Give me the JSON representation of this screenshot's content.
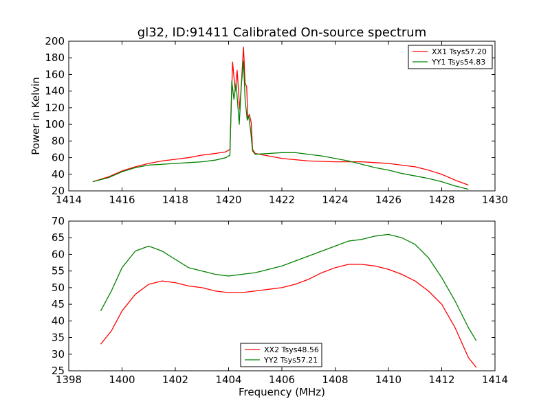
{
  "figure": {
    "title": "gl32, ID:91411 Calibrated On-source spectrum",
    "ylabel_top": "Power in Kelvin",
    "xlabel_bottom": "Frequency (MHz)"
  },
  "chart_data": [
    {
      "type": "line",
      "title": "gl32, ID:91411 Calibrated On-source spectrum",
      "xlabel": "",
      "ylabel": "Power in Kelvin",
      "xlim": [
        1414,
        1430
      ],
      "ylim": [
        20,
        200
      ],
      "xticks": [
        1414,
        1416,
        1418,
        1420,
        1422,
        1424,
        1426,
        1428,
        1430
      ],
      "yticks": [
        20,
        40,
        60,
        80,
        100,
        120,
        140,
        160,
        180,
        200
      ],
      "grid": false,
      "legend": "top-right",
      "series": [
        {
          "name": "XX1 Tsys57.20",
          "color": "#ff0000",
          "points": [
            [
              1414.9,
              31
            ],
            [
              1415.5,
              37
            ],
            [
              1416,
              44
            ],
            [
              1416.5,
              49
            ],
            [
              1417,
              53
            ],
            [
              1417.5,
              56
            ],
            [
              1418,
              58
            ],
            [
              1418.5,
              60
            ],
            [
              1419,
              63
            ],
            [
              1419.5,
              65
            ],
            [
              1419.9,
              67
            ],
            [
              1420.05,
              70
            ],
            [
              1420.15,
              175
            ],
            [
              1420.25,
              140
            ],
            [
              1420.32,
              165
            ],
            [
              1420.42,
              118
            ],
            [
              1420.5,
              160
            ],
            [
              1420.56,
              193
            ],
            [
              1420.62,
              150
            ],
            [
              1420.68,
              145
            ],
            [
              1420.72,
              108
            ],
            [
              1420.78,
              112
            ],
            [
              1420.85,
              102
            ],
            [
              1420.9,
              70
            ],
            [
              1421,
              65
            ],
            [
              1421.5,
              62
            ],
            [
              1422,
              59
            ],
            [
              1423,
              56
            ],
            [
              1424,
              55
            ],
            [
              1425,
              55
            ],
            [
              1425.5,
              54
            ],
            [
              1426,
              53
            ],
            [
              1426.5,
              51
            ],
            [
              1427,
              49
            ],
            [
              1427.5,
              45
            ],
            [
              1428,
              40
            ],
            [
              1428.5,
              33
            ],
            [
              1429,
              27
            ]
          ]
        },
        {
          "name": "YY1 Tsys54.83",
          "color": "#008000",
          "points": [
            [
              1414.9,
              31
            ],
            [
              1415.5,
              36
            ],
            [
              1416,
              43
            ],
            [
              1416.5,
              48
            ],
            [
              1417,
              51
            ],
            [
              1417.5,
              52
            ],
            [
              1418,
              53
            ],
            [
              1418.5,
              54
            ],
            [
              1419,
              55
            ],
            [
              1419.5,
              57
            ],
            [
              1419.9,
              60
            ],
            [
              1420.05,
              63
            ],
            [
              1420.12,
              152
            ],
            [
              1420.2,
              130
            ],
            [
              1420.28,
              150
            ],
            [
              1420.4,
              100
            ],
            [
              1420.48,
              148
            ],
            [
              1420.56,
              176
            ],
            [
              1420.62,
              130
            ],
            [
              1420.7,
              105
            ],
            [
              1420.75,
              110
            ],
            [
              1420.82,
              95
            ],
            [
              1420.9,
              68
            ],
            [
              1421,
              64
            ],
            [
              1421.5,
              65
            ],
            [
              1422,
              66
            ],
            [
              1422.5,
              66
            ],
            [
              1423,
              64
            ],
            [
              1423.5,
              62
            ],
            [
              1424,
              59
            ],
            [
              1424.5,
              56
            ],
            [
              1425,
              52
            ],
            [
              1425.5,
              48
            ],
            [
              1426,
              45
            ],
            [
              1426.5,
              41
            ],
            [
              1427,
              38
            ],
            [
              1427.5,
              35
            ],
            [
              1428,
              31
            ],
            [
              1428.5,
              26
            ],
            [
              1429,
              22
            ]
          ]
        }
      ]
    },
    {
      "type": "line",
      "title": "",
      "xlabel": "Frequency (MHz)",
      "ylabel": "",
      "xlim": [
        1398,
        1414
      ],
      "ylim": [
        25,
        70
      ],
      "xticks": [
        1398,
        1400,
        1402,
        1404,
        1406,
        1408,
        1410,
        1412,
        1414
      ],
      "yticks": [
        25,
        30,
        35,
        40,
        45,
        50,
        55,
        60,
        65,
        70
      ],
      "grid": false,
      "legend": "bottom-center",
      "series": [
        {
          "name": "XX2 Tsys48.56",
          "color": "#ff0000",
          "points": [
            [
              1399.2,
              33
            ],
            [
              1399.6,
              37
            ],
            [
              1400,
              43
            ],
            [
              1400.5,
              48
            ],
            [
              1401,
              51
            ],
            [
              1401.5,
              52
            ],
            [
              1402,
              51.5
            ],
            [
              1402.5,
              50.5
            ],
            [
              1403,
              50
            ],
            [
              1403.5,
              49
            ],
            [
              1404,
              48.5
            ],
            [
              1404.5,
              48.5
            ],
            [
              1405,
              49
            ],
            [
              1405.5,
              49.5
            ],
            [
              1406,
              50
            ],
            [
              1406.5,
              51
            ],
            [
              1407,
              52.5
            ],
            [
              1407.5,
              54.5
            ],
            [
              1408,
              56
            ],
            [
              1408.5,
              57
            ],
            [
              1409,
              57
            ],
            [
              1409.5,
              56.5
            ],
            [
              1410,
              55.5
            ],
            [
              1410.5,
              54
            ],
            [
              1411,
              52
            ],
            [
              1411.5,
              49
            ],
            [
              1412,
              45
            ],
            [
              1412.5,
              38
            ],
            [
              1413,
              29
            ],
            [
              1413.3,
              26
            ]
          ]
        },
        {
          "name": "YY2 Tsys57.21",
          "color": "#008000",
          "points": [
            [
              1399.2,
              43
            ],
            [
              1399.6,
              49
            ],
            [
              1400,
              56
            ],
            [
              1400.5,
              61
            ],
            [
              1401,
              62.5
            ],
            [
              1401.5,
              61
            ],
            [
              1402,
              58.5
            ],
            [
              1402.5,
              56
            ],
            [
              1403,
              55
            ],
            [
              1403.5,
              54
            ],
            [
              1404,
              53.5
            ],
            [
              1404.5,
              54
            ],
            [
              1405,
              54.5
            ],
            [
              1405.5,
              55.5
            ],
            [
              1406,
              56.5
            ],
            [
              1406.5,
              58
            ],
            [
              1407,
              59.5
            ],
            [
              1407.5,
              61
            ],
            [
              1408,
              62.5
            ],
            [
              1408.5,
              64
            ],
            [
              1409,
              64.5
            ],
            [
              1409.5,
              65.5
            ],
            [
              1410,
              66
            ],
            [
              1410.5,
              65
            ],
            [
              1411,
              63
            ],
            [
              1411.5,
              59
            ],
            [
              1412,
              53
            ],
            [
              1412.5,
              46
            ],
            [
              1413,
              38
            ],
            [
              1413.3,
              34
            ]
          ]
        }
      ]
    }
  ]
}
